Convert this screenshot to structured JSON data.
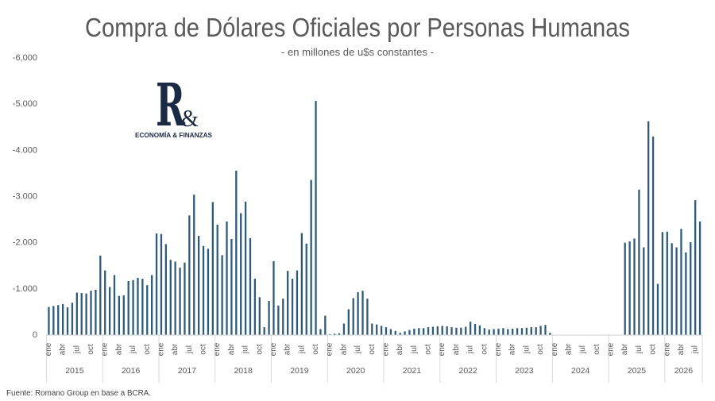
{
  "chart_data": {
    "type": "bar",
    "title": "Compra de Dólares Oficiales por Personas Humanas",
    "subtitle": "- en millones de u$s constantes -",
    "xlabel": "",
    "ylabel": "",
    "ylim": [
      -6000,
      0
    ],
    "y_axis_reversed": true,
    "grid": false,
    "legend": "none",
    "y_ticks": [
      {
        "value": -6000,
        "label": "-6,000"
      },
      {
        "value": -5000,
        "label": "-5.000"
      },
      {
        "value": -4000,
        "label": "-4.000"
      },
      {
        "value": -3000,
        "label": "-3.000"
      },
      {
        "value": -2000,
        "label": "-2.000"
      },
      {
        "value": -1000,
        "label": "-1.000"
      },
      {
        "value": 0,
        "label": "0"
      }
    ],
    "month_tick_labels": [
      {
        "month": 1,
        "label": "ene"
      },
      {
        "month": 4,
        "label": "abr"
      },
      {
        "month": 7,
        "label": "jul"
      },
      {
        "month": 10,
        "label": "oct"
      }
    ],
    "years": [
      {
        "label": "2015",
        "values": [
          -610,
          -630,
          -650,
          -670,
          -600,
          -700,
          -920,
          -910,
          -900,
          -960,
          -980,
          -1720
        ]
      },
      {
        "label": "2016",
        "values": [
          -1400,
          -1040,
          -1300,
          -850,
          -860,
          -1170,
          -1190,
          -1240,
          -1220,
          -1080,
          -1300,
          -2200
        ]
      },
      {
        "label": "2017",
        "values": [
          -2190,
          -1970,
          -1630,
          -1590,
          -1460,
          -1570,
          -2590,
          -3040,
          -2150,
          -1930,
          -1870,
          -2880
        ]
      },
      {
        "label": "2018",
        "values": [
          -2390,
          -1730,
          -2460,
          -2080,
          -3560,
          -2640,
          -2890,
          -2100,
          -1220,
          -820,
          -170,
          -740
        ]
      },
      {
        "label": "2019",
        "values": [
          -1600,
          -640,
          -790,
          -1390,
          -1220,
          -1400,
          -2210,
          -1980,
          -3360,
          -5070,
          -130,
          -420
        ]
      },
      {
        "label": "2020",
        "values": [
          -20,
          -30,
          -40,
          -250,
          -560,
          -800,
          -930,
          -960,
          -790,
          -250,
          -230,
          -200
        ]
      },
      {
        "label": "2021",
        "values": [
          -170,
          -130,
          -90,
          -50,
          -80,
          -110,
          -140,
          -150,
          -150,
          -170,
          -180,
          -190
        ]
      },
      {
        "label": "2022",
        "values": [
          -200,
          -190,
          -170,
          -160,
          -160,
          -180,
          -290,
          -240,
          -210,
          -150,
          -120,
          -130
        ]
      },
      {
        "label": "2023",
        "values": [
          -140,
          -150,
          -130,
          -140,
          -150,
          -150,
          -160,
          -170,
          -170,
          -200,
          -220,
          -50
        ]
      },
      {
        "label": "2024",
        "values": [
          0,
          0,
          0,
          0,
          0,
          0,
          0,
          0,
          0,
          0,
          0,
          0
        ]
      },
      {
        "label": "2025",
        "values": [
          0,
          0,
          0,
          -2000,
          -2030,
          -2090,
          -3150,
          -1900,
          -4630,
          -4300,
          -1110,
          -2230
        ]
      },
      {
        "label": "2026",
        "values": [
          -2240,
          -1990,
          -1900,
          -2300,
          -1790,
          -2010,
          -2920,
          -2460
        ]
      }
    ]
  },
  "logo": {
    "letter": "R",
    "ampersand": "&",
    "tagline": "ECONOMÍA & FINANZAS"
  },
  "source": "Fuente: Romano Group en base a BCRA.",
  "colors": {
    "bar": "#2f5b7a",
    "logo": "#1c2945"
  }
}
